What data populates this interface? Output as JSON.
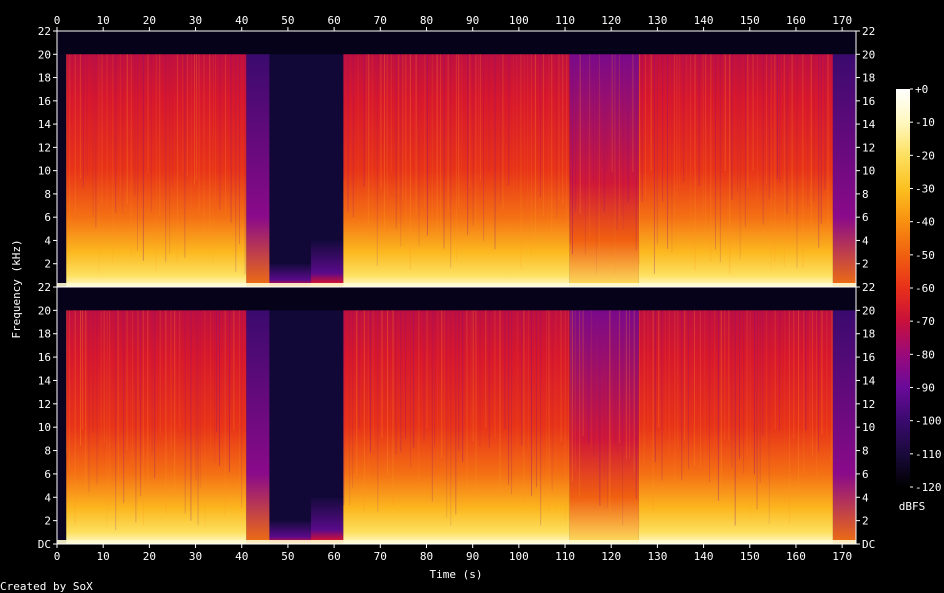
{
  "chart_data": {
    "type": "heatmap",
    "xlabel": "Time (s)",
    "ylabel": "Frequency (kHz)",
    "xlim": [
      0,
      173
    ],
    "ylim": [
      0,
      22
    ],
    "x_ticks": [
      "0",
      "10",
      "20",
      "30",
      "40",
      "50",
      "60",
      "70",
      "80",
      "90",
      "100",
      "110",
      "120",
      "130",
      "140",
      "150",
      "160",
      "170"
    ],
    "x_tick_values": [
      0,
      10,
      20,
      30,
      40,
      50,
      60,
      70,
      80,
      90,
      100,
      110,
      120,
      130,
      140,
      150,
      160,
      170
    ],
    "y_ticks_top": [
      "22",
      "20",
      "18",
      "16",
      "14",
      "12",
      "10",
      "8",
      "6",
      "4",
      "2"
    ],
    "y_ticks_bottom": [
      "22",
      "20",
      "18",
      "16",
      "14",
      "12",
      "10",
      "8",
      "6",
      "4",
      "2",
      "DC"
    ],
    "y_tick_values": [
      22,
      20,
      18,
      16,
      14,
      12,
      10,
      8,
      6,
      4,
      2,
      0
    ],
    "colorbar": {
      "label": "dBFS",
      "ticks": [
        "+0",
        "-10",
        "-20",
        "-30",
        "-40",
        "-50",
        "-60",
        "-70",
        "-80",
        "-90",
        "-100",
        "-110",
        "-120"
      ],
      "range": [
        -120,
        0
      ],
      "colors": [
        "#000000",
        "#1a0a3c",
        "#3a0a6e",
        "#6a0a9a",
        "#9a0a7a",
        "#c8103c",
        "#e8301a",
        "#f06010",
        "#f89010",
        "#fcc020",
        "#fde060",
        "#fff8c0",
        "#ffffff"
      ]
    },
    "channels": [
      {
        "channel": "left"
      },
      {
        "channel": "right"
      }
    ],
    "segments": [
      {
        "start": 0,
        "end": 2,
        "level": "quiet"
      },
      {
        "start": 2,
        "end": 41,
        "level": "loud",
        "cutoff_khz": 20
      },
      {
        "start": 41,
        "end": 46,
        "level": "fade"
      },
      {
        "start": 46,
        "end": 55,
        "level": "low",
        "cutoff_khz": 2
      },
      {
        "start": 55,
        "end": 62,
        "level": "low",
        "cutoff_khz": 4
      },
      {
        "start": 62,
        "end": 111,
        "level": "loud",
        "cutoff_khz": 20
      },
      {
        "start": 111,
        "end": 126,
        "level": "medium",
        "cutoff_khz": 20
      },
      {
        "start": 126,
        "end": 168,
        "level": "loud",
        "cutoff_khz": 20
      },
      {
        "start": 168,
        "end": 173,
        "level": "fade"
      }
    ]
  },
  "footer": {
    "credit": "Created by SoX"
  }
}
